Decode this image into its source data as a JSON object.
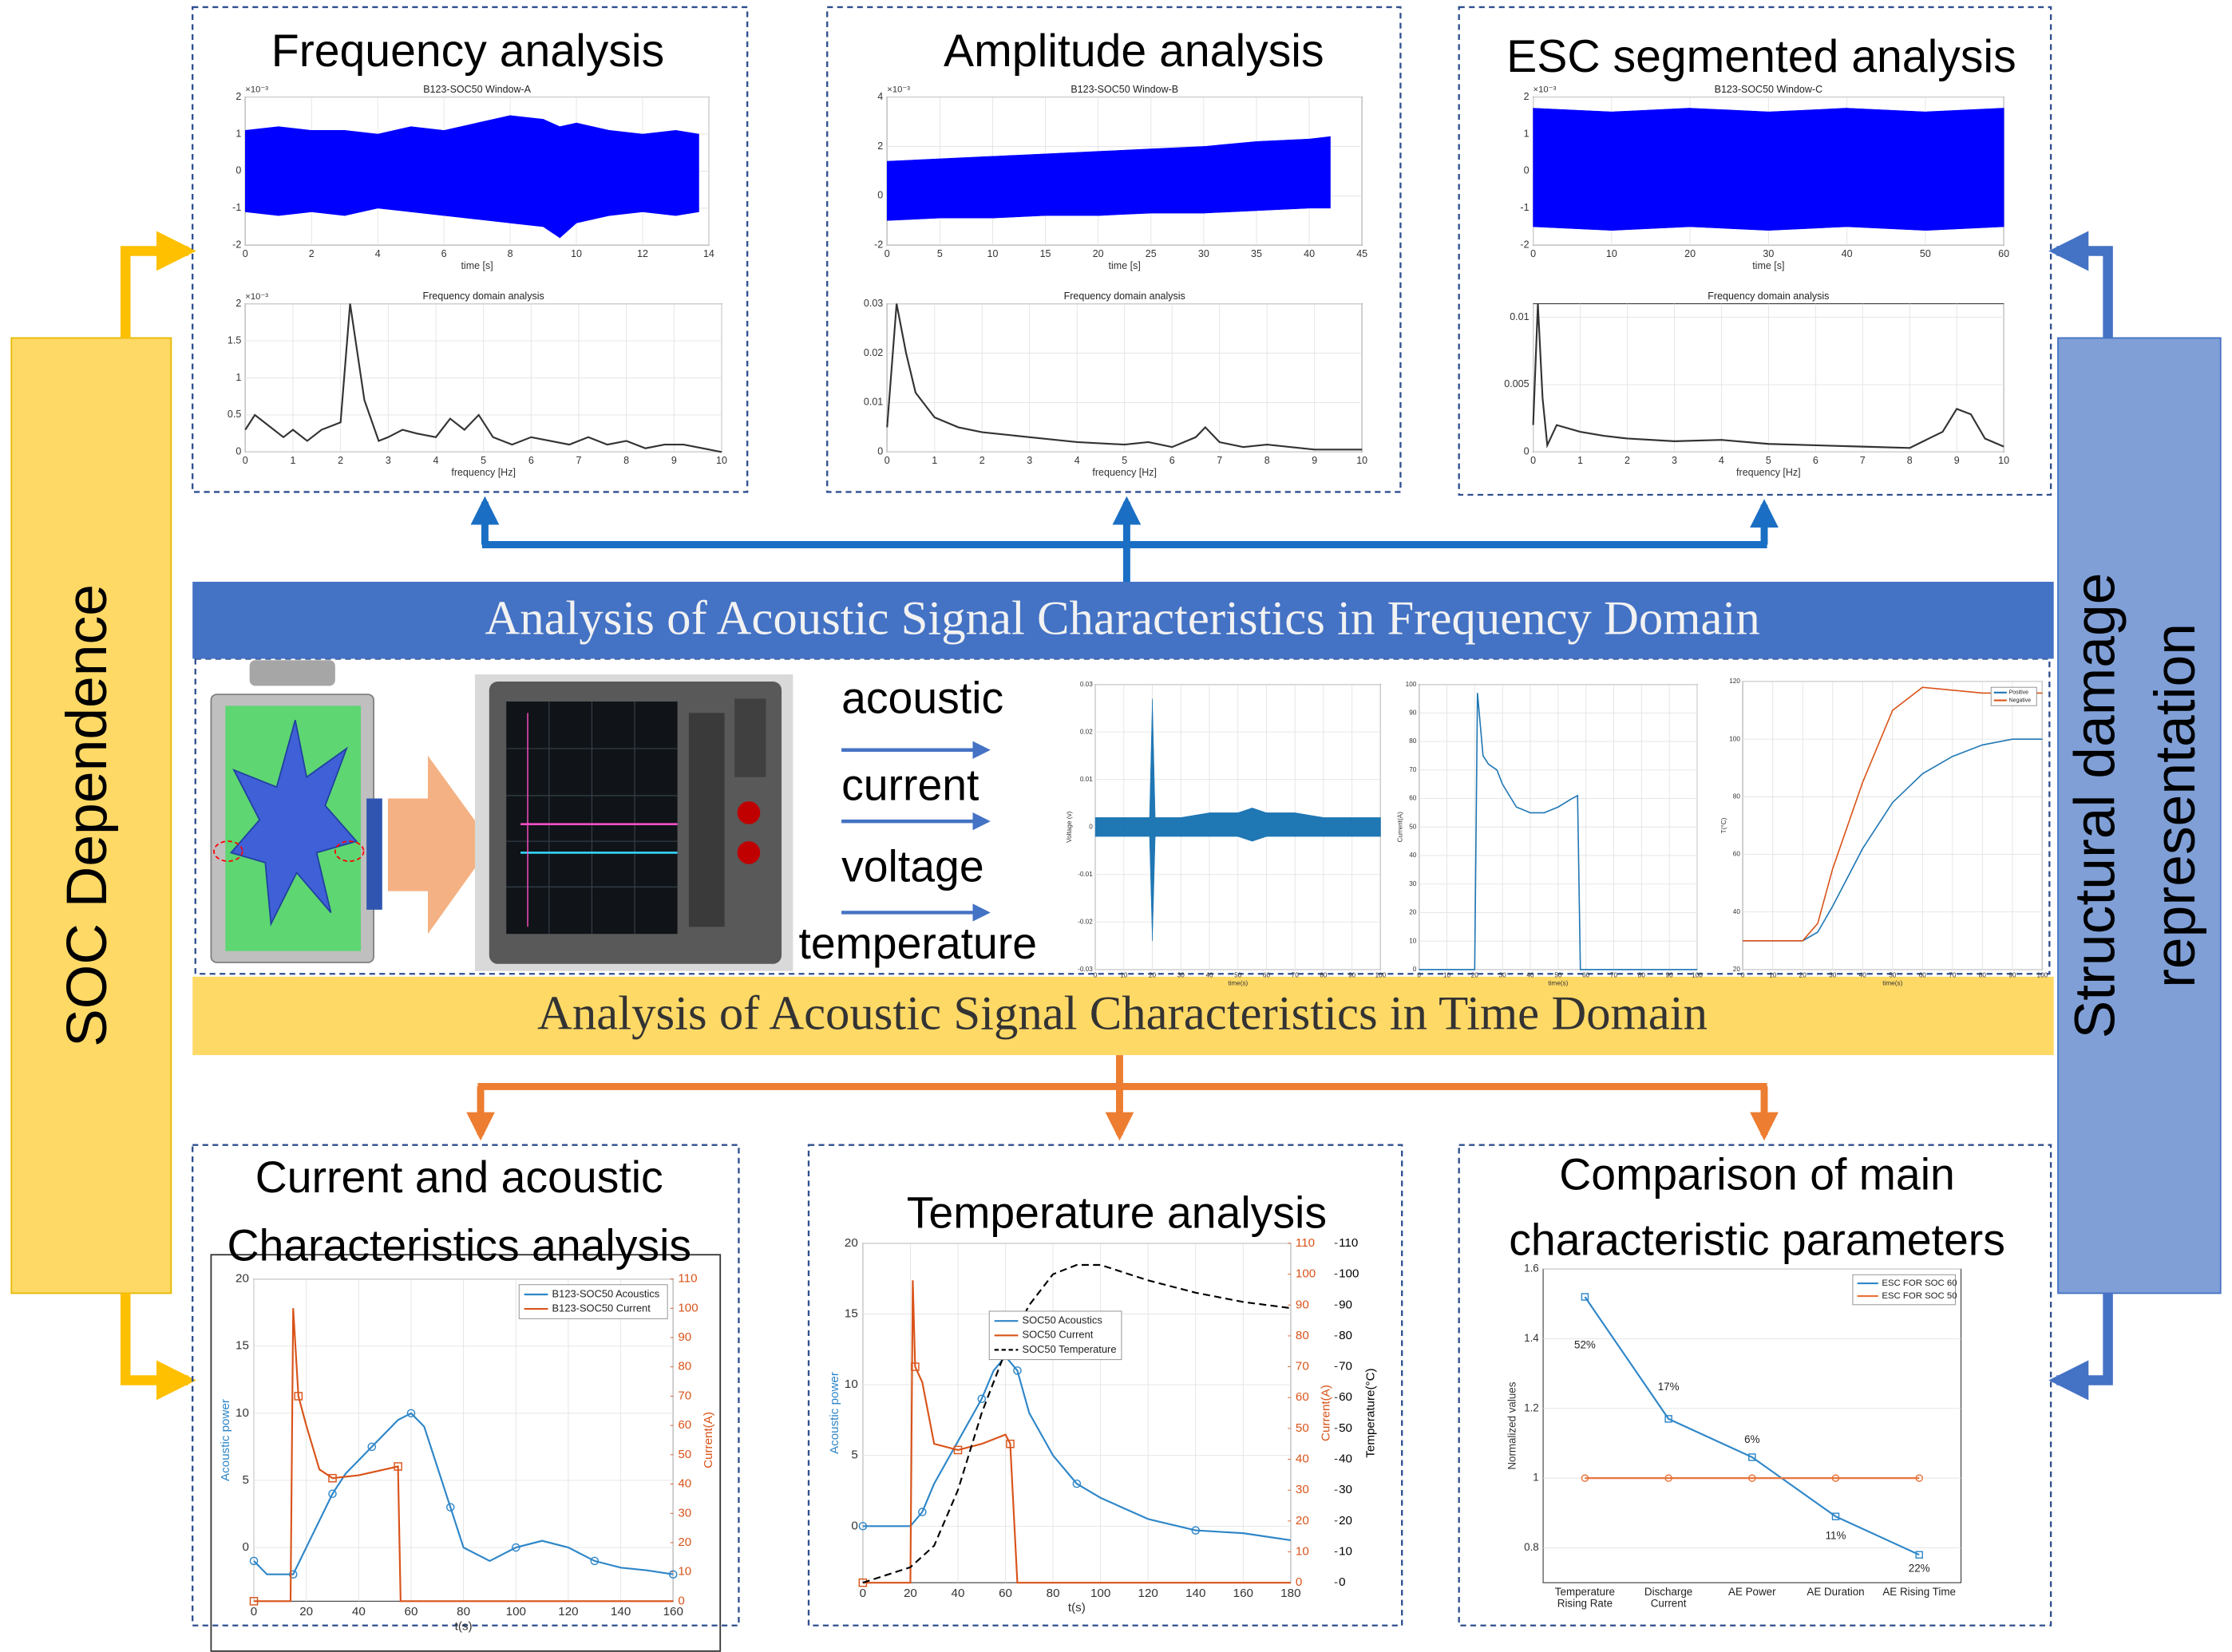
{
  "side_labels": {
    "left": "SOC Dependence",
    "right": [
      "Structural damage",
      "representation"
    ]
  },
  "bands": {
    "frequency": "Analysis of Acoustic Signal Characteristics in Frequency  Domain",
    "time": "Analysis of Acoustic Signal Characteristics in Time Domain"
  },
  "panels": [
    {
      "title": [
        "Frequency  analysis"
      ]
    },
    {
      "title": [
        "Amplitude analysis"
      ]
    },
    {
      "title": [
        "ESC segmented analysis"
      ]
    },
    {
      "title": [
        "Current and acoustic",
        "Characteristics analysis"
      ]
    },
    {
      "title": [
        "Temperature analysis"
      ]
    },
    {
      "title": [
        "Comparison of main",
        "characteristic parameters"
      ]
    }
  ],
  "signals": [
    "acoustic",
    "current",
    "voltage",
    "temperature"
  ],
  "charts": [
    {
      "type": "band",
      "title": "B123-SOC50 Window-A",
      "exponent": "×10⁻³",
      "xlabel": "time [s]",
      "xlim": [
        0,
        14
      ],
      "xticks": [
        0,
        2,
        4,
        6,
        8,
        10,
        12,
        14
      ],
      "ylim": [
        -2,
        2
      ],
      "yticks": [
        -2,
        -1,
        0,
        1,
        2
      ],
      "grid": true,
      "band": {
        "color": "#0000ff",
        "x": [
          0,
          1,
          2,
          3,
          4,
          5,
          6,
          7,
          8,
          9,
          9.5,
          10,
          11,
          12,
          13,
          13.7
        ],
        "upper": [
          1.1,
          1.2,
          1.1,
          1.1,
          1.0,
          1.2,
          1.1,
          1.3,
          1.5,
          1.4,
          1.2,
          1.3,
          1.1,
          1.0,
          1.1,
          1.0
        ],
        "lower": [
          -1.1,
          -1.2,
          -1.1,
          -1.2,
          -1.0,
          -1.1,
          -1.2,
          -1.3,
          -1.4,
          -1.5,
          -1.8,
          -1.4,
          -1.2,
          -1.1,
          -1.2,
          -1.1
        ]
      }
    },
    {
      "type": "line",
      "title": "Frequency domain analysis",
      "exponent": "×10⁻³",
      "xlabel": "frequency [Hz]",
      "xlim": [
        0,
        10
      ],
      "xticks": [
        0,
        1,
        2,
        3,
        4,
        5,
        6,
        7,
        8,
        9,
        10
      ],
      "ylim": [
        0,
        2
      ],
      "yticks": [
        0,
        0.5,
        1,
        1.5,
        2
      ],
      "grid": true,
      "series": [
        {
          "color": "#333333",
          "x": [
            0,
            0.2,
            0.5,
            0.8,
            1,
            1.3,
            1.6,
            2,
            2.2,
            2.5,
            2.8,
            3,
            3.3,
            3.6,
            4,
            4.3,
            4.6,
            4.9,
            5.2,
            5.6,
            6,
            6.4,
            6.8,
            7.2,
            7.6,
            8,
            8.4,
            8.8,
            9.2,
            9.6,
            10
          ],
          "values": [
            0.3,
            0.5,
            0.35,
            0.2,
            0.3,
            0.15,
            0.3,
            0.4,
            2.0,
            0.7,
            0.15,
            0.2,
            0.3,
            0.25,
            0.2,
            0.45,
            0.3,
            0.5,
            0.2,
            0.1,
            0.2,
            0.15,
            0.1,
            0.2,
            0.1,
            0.15,
            0.05,
            0.1,
            0.1,
            0.05,
            0.0
          ]
        }
      ]
    },
    {
      "type": "band",
      "title": "B123-SOC50 Window-B",
      "exponent": "×10⁻³",
      "xlabel": "time [s]",
      "xlim": [
        0,
        45
      ],
      "xticks": [
        0,
        5,
        10,
        15,
        20,
        25,
        30,
        35,
        40,
        45
      ],
      "ylim": [
        -2,
        4
      ],
      "yticks": [
        -2,
        0,
        2,
        4
      ],
      "grid": true,
      "band": {
        "color": "#0000ff",
        "x": [
          0,
          5,
          10,
          15,
          20,
          25,
          30,
          35,
          40,
          42
        ],
        "upper": [
          1.4,
          1.5,
          1.6,
          1.7,
          1.8,
          1.9,
          2.0,
          2.2,
          2.3,
          2.4
        ],
        "lower": [
          -1.0,
          -0.9,
          -0.9,
          -0.8,
          -0.8,
          -0.7,
          -0.7,
          -0.6,
          -0.5,
          -0.5
        ]
      }
    },
    {
      "type": "line",
      "title": "Frequency domain analysis",
      "xlabel": "frequency [Hz]",
      "xlim": [
        0,
        10
      ],
      "xticks": [
        0,
        1,
        2,
        3,
        4,
        5,
        6,
        7,
        8,
        9,
        10
      ],
      "ylim": [
        0,
        0.03
      ],
      "yticks": [
        0,
        0.01,
        0.02,
        0.03
      ],
      "grid": true,
      "series": [
        {
          "color": "#333333",
          "x": [
            0,
            0.2,
            0.4,
            0.6,
            1,
            1.5,
            2,
            3,
            4,
            5,
            5.5,
            6,
            6.5,
            6.7,
            7,
            7.5,
            8,
            9,
            10
          ],
          "values": [
            0.005,
            0.03,
            0.02,
            0.012,
            0.007,
            0.005,
            0.004,
            0.003,
            0.002,
            0.0015,
            0.002,
            0.001,
            0.003,
            0.005,
            0.002,
            0.001,
            0.0015,
            0.0005,
            0.0005
          ]
        }
      ]
    },
    {
      "type": "band",
      "title": "B123-SOC50 Window-C",
      "exponent": "×10⁻³",
      "xlabel": "time [s]",
      "xlim": [
        0,
        60
      ],
      "xticks": [
        0,
        10,
        20,
        30,
        40,
        50,
        60
      ],
      "ylim": [
        -2,
        2
      ],
      "yticks": [
        -2,
        -1,
        0,
        1,
        2
      ],
      "grid": true,
      "band": {
        "color": "#0000ff",
        "x": [
          0,
          10,
          20,
          30,
          40,
          50,
          60
        ],
        "upper": [
          1.7,
          1.6,
          1.7,
          1.6,
          1.7,
          1.6,
          1.7
        ],
        "lower": [
          -1.5,
          -1.6,
          -1.5,
          -1.6,
          -1.5,
          -1.6,
          -1.5
        ]
      }
    },
    {
      "type": "line",
      "title": "Frequency domain analysis",
      "xlabel": "frequency [Hz]",
      "xlim": [
        0,
        10
      ],
      "xticks": [
        0,
        1,
        2,
        3,
        4,
        5,
        6,
        7,
        8,
        9,
        10
      ],
      "ylim": [
        0,
        0.011
      ],
      "yticks": [
        0,
        0.005,
        0.01
      ],
      "grid": true,
      "series": [
        {
          "color": "#333333",
          "x": [
            0,
            0.1,
            0.2,
            0.3,
            0.5,
            1,
            1.5,
            2,
            3,
            4,
            5,
            6,
            7,
            8,
            8.7,
            9,
            9.3,
            9.6,
            10
          ],
          "values": [
            0.002,
            0.011,
            0.004,
            0.0005,
            0.002,
            0.0015,
            0.0012,
            0.001,
            0.0008,
            0.0009,
            0.0006,
            0.0005,
            0.0004,
            0.0003,
            0.0015,
            0.0032,
            0.0028,
            0.001,
            0.0004
          ]
        }
      ]
    },
    {
      "type": "band",
      "xlabel": "time(s)",
      "ylabel": "Voltage (v)",
      "xlim": [
        0,
        100
      ],
      "xticks": [
        0,
        10,
        20,
        30,
        40,
        50,
        60,
        70,
        80,
        90,
        100
      ],
      "ylim": [
        -0.03,
        0.03
      ],
      "yticks": [
        -0.03,
        -0.02,
        -0.01,
        0,
        0.01,
        0.02,
        0.03
      ],
      "grid": true,
      "band": {
        "color": "#1f77b4",
        "x": [
          0,
          10,
          19,
          20,
          21,
          30,
          40,
          50,
          55,
          60,
          70,
          80,
          90,
          100
        ],
        "upper": [
          0.002,
          0.002,
          0.002,
          0.027,
          0.002,
          0.002,
          0.003,
          0.003,
          0.004,
          0.003,
          0.003,
          0.002,
          0.002,
          0.002
        ],
        "lower": [
          -0.002,
          -0.002,
          -0.002,
          -0.024,
          -0.002,
          -0.002,
          -0.002,
          -0.002,
          -0.003,
          -0.002,
          -0.002,
          -0.002,
          -0.002,
          -0.002
        ]
      }
    },
    {
      "type": "line",
      "xlabel": "time(s)",
      "ylabel": "Current(A)",
      "xlim": [
        0,
        100
      ],
      "xticks": [
        0,
        10,
        20,
        30,
        40,
        50,
        60,
        70,
        80,
        90,
        100
      ],
      "ylim": [
        0,
        100
      ],
      "yticks": [
        0,
        10,
        20,
        30,
        40,
        50,
        60,
        70,
        80,
        90,
        100
      ],
      "grid": true,
      "series": [
        {
          "color": "#1f77b4",
          "x": [
            0,
            19,
            20,
            21,
            23,
            25,
            28,
            30,
            35,
            40,
            45,
            50,
            55,
            57,
            58,
            100
          ],
          "values": [
            0,
            0,
            0,
            97,
            75,
            72,
            70,
            65,
            57,
            55,
            55,
            57,
            60,
            61,
            0,
            0
          ]
        }
      ]
    },
    {
      "type": "line",
      "xlabel": "time(s)",
      "ylabel": "T(°C)",
      "legend": "top-right",
      "xlim": [
        0,
        100
      ],
      "xticks": [
        0,
        10,
        20,
        30,
        40,
        50,
        60,
        70,
        80,
        90,
        100
      ],
      "ylim": [
        20,
        120
      ],
      "yticks": [
        20,
        40,
        60,
        80,
        100,
        120
      ],
      "grid": true,
      "series": [
        {
          "name": "Positive",
          "color": "#1f77b4",
          "x": [
            0,
            10,
            20,
            25,
            30,
            40,
            50,
            60,
            70,
            80,
            90,
            100
          ],
          "values": [
            30,
            30,
            30,
            33,
            42,
            62,
            78,
            88,
            94,
            98,
            100,
            100
          ]
        },
        {
          "name": "Negative",
          "color": "#d95319",
          "x": [
            0,
            10,
            20,
            25,
            30,
            40,
            50,
            60,
            70,
            80,
            90,
            100
          ],
          "values": [
            30,
            30,
            30,
            36,
            55,
            85,
            110,
            118,
            117,
            116,
            116,
            116
          ]
        }
      ]
    },
    {
      "type": "line",
      "xlabel": "t(s)",
      "ylabel": "Acoustic power",
      "y2label": "Current(A)",
      "legend": "top-right",
      "xlim": [
        0,
        160
      ],
      "xticks": [
        0,
        20,
        40,
        60,
        80,
        100,
        120,
        140,
        160
      ],
      "ylim": [
        -4,
        20
      ],
      "yticks": [
        0,
        5,
        10,
        15,
        20
      ],
      "y2lim": [
        0,
        110
      ],
      "y2ticks": [
        0,
        10,
        20,
        30,
        40,
        50,
        60,
        70,
        80,
        90,
        100,
        110
      ],
      "grid": true,
      "series": [
        {
          "name": "B123-SOC50 Acoustics",
          "color": "#2e86c8",
          "marker": "circle",
          "x": [
            0,
            5,
            10,
            15,
            20,
            25,
            30,
            35,
            40,
            45,
            50,
            55,
            60,
            65,
            70,
            75,
            80,
            90,
            100,
            110,
            120,
            130,
            140,
            150,
            160
          ],
          "values": [
            -1,
            -2,
            -2,
            -2,
            0,
            2,
            4,
            5.5,
            6.5,
            7.5,
            8.5,
            9.5,
            10,
            9,
            6,
            3,
            0,
            -1,
            0,
            0.5,
            0,
            -1,
            -1.5,
            -1.7,
            -2
          ]
        },
        {
          "name": "B123-SOC50 Current",
          "color": "#d95319",
          "marker": "square",
          "axis": "y2",
          "x": [
            0,
            14,
            15,
            17,
            20,
            25,
            30,
            40,
            50,
            55,
            56,
            160
          ],
          "values": [
            0,
            0,
            100,
            70,
            60,
            45,
            42,
            43,
            45,
            46,
            0,
            0
          ]
        }
      ]
    },
    {
      "type": "line",
      "xlabel": "t(s)",
      "ylabel": "Acoustic power",
      "y2label": "Current(A)",
      "y3label": "Temperature(°C)",
      "legend": "upper-center",
      "xlim": [
        0,
        180
      ],
      "xticks": [
        0,
        20,
        40,
        60,
        80,
        100,
        120,
        140,
        160,
        180
      ],
      "ylim": [
        -4,
        20
      ],
      "yticks": [
        0,
        5,
        10,
        15,
        20
      ],
      "y2lim": [
        0,
        110
      ],
      "y2ticks": [
        0,
        10,
        20,
        30,
        40,
        50,
        60,
        70,
        80,
        90,
        100,
        110
      ],
      "y3lim": [
        0,
        110
      ],
      "y3ticks": [
        0,
        10,
        20,
        30,
        40,
        50,
        60,
        70,
        80,
        90,
        100,
        110
      ],
      "grid": true,
      "series": [
        {
          "name": "SOC50 Acoustics",
          "color": "#2e86c8",
          "marker": "circle",
          "x": [
            0,
            10,
            20,
            25,
            30,
            40,
            50,
            55,
            60,
            65,
            70,
            80,
            90,
            100,
            120,
            140,
            160,
            180
          ],
          "values": [
            0,
            0,
            0,
            1,
            3,
            6,
            9,
            11,
            12,
            11,
            8,
            5,
            3,
            2,
            0.5,
            -0.3,
            -0.5,
            -1
          ]
        },
        {
          "name": "SOC50 Current",
          "color": "#d95319",
          "marker": "square",
          "axis": "y2",
          "x": [
            0,
            20,
            21,
            22,
            25,
            30,
            40,
            50,
            60,
            62,
            65,
            180
          ],
          "values": [
            0,
            0,
            98,
            70,
            65,
            45,
            43,
            45,
            48,
            45,
            0,
            0
          ]
        },
        {
          "name": "SOC50 Temperature",
          "color": "#000000",
          "dashed": true,
          "axis": "y3",
          "x": [
            0,
            20,
            30,
            40,
            50,
            60,
            70,
            80,
            90,
            100,
            120,
            140,
            160,
            180
          ],
          "values": [
            0,
            5,
            12,
            30,
            55,
            75,
            90,
            100,
            103,
            103,
            98,
            94,
            91,
            89
          ]
        }
      ]
    },
    {
      "type": "line",
      "ylabel": "Normalized values",
      "legend": "top-right",
      "categories": [
        "Temperature Rising Rate",
        "Discharge Current",
        "AE Power",
        "AE Duration",
        "AE Rising Time"
      ],
      "ylim": [
        0.7,
        1.6
      ],
      "yticks": [
        0.8,
        1,
        1.2,
        1.4,
        1.6
      ],
      "grid": true,
      "series": [
        {
          "name": "ESC FOR SOC 60",
          "color": "#2e86c8",
          "marker": "square",
          "values": [
            1.52,
            1.17,
            1.06,
            0.89,
            0.78
          ]
        },
        {
          "name": "ESC FOR SOC 50",
          "color": "#e8743b",
          "marker": "circle",
          "values": [
            1,
            1,
            1,
            1,
            1
          ]
        }
      ],
      "annotations": [
        "52%",
        "17%",
        "6%",
        "11%",
        "22%"
      ]
    }
  ]
}
